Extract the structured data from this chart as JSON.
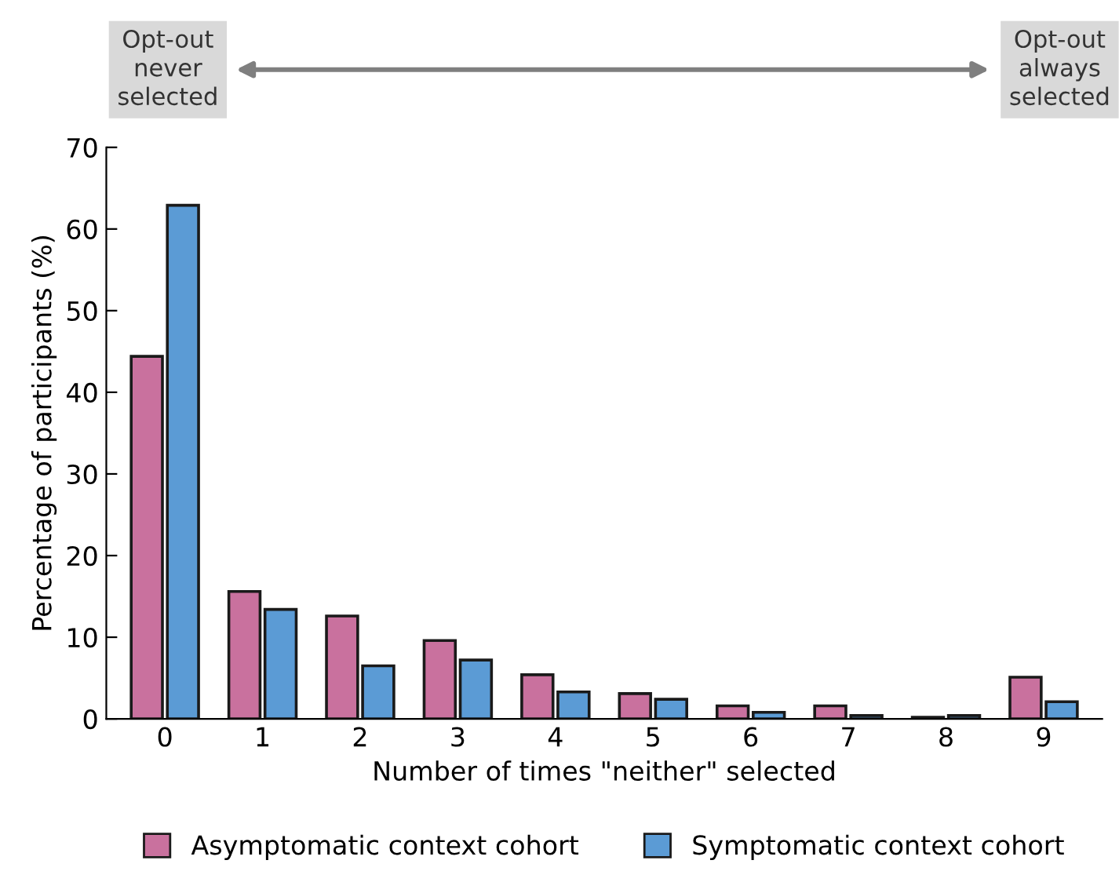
{
  "chart_data": {
    "type": "bar",
    "xlabel": "Number of times \"neither\" selected",
    "ylabel": "Percentage of participants (%)",
    "categories": [
      "0",
      "1",
      "2",
      "3",
      "4",
      "5",
      "6",
      "7",
      "8",
      "9"
    ],
    "series": [
      {
        "name": "Asymptomatic context cohort",
        "color": "#c9719e",
        "values": [
          44.4,
          15.6,
          12.6,
          9.6,
          5.4,
          3.1,
          1.6,
          1.6,
          0.2,
          5.1
        ]
      },
      {
        "name": "Symptomatic context cohort",
        "color": "#5b9bd5",
        "values": [
          62.9,
          13.4,
          6.5,
          7.2,
          3.3,
          2.4,
          0.8,
          0.4,
          0.4,
          2.1
        ]
      }
    ],
    "ylim": [
      0,
      70
    ],
    "yticks": [
      0,
      10,
      20,
      30,
      40,
      50,
      60,
      70
    ],
    "grid": false,
    "legend": "bottom",
    "annotations": [
      "Opt-out\nnever\nselected",
      "Opt-out\nalways\nselected"
    ]
  }
}
